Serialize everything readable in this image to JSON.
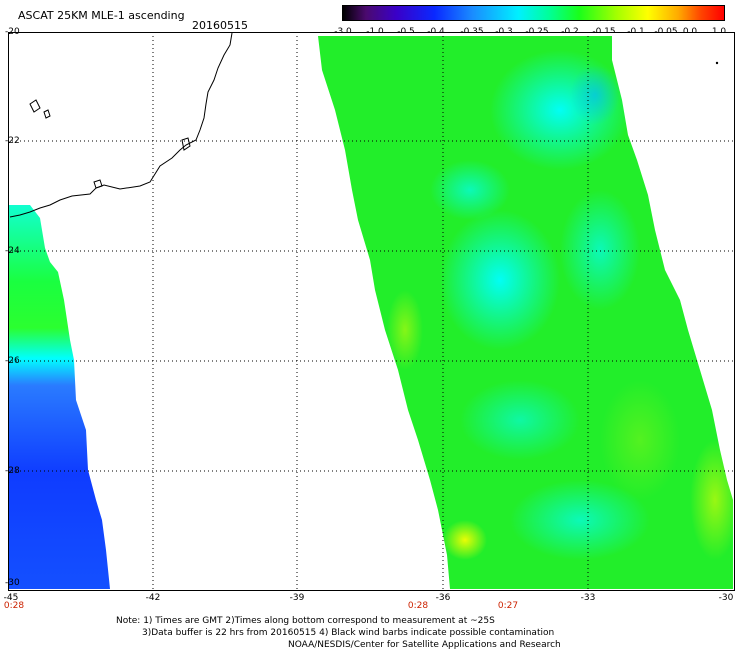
{
  "header": {
    "title": "ASCAT 25KM MLE-1 ascending",
    "date": "20160515"
  },
  "legend": {
    "ticks": [
      "-3.0",
      "-1.0",
      "-0.5",
      "-0.4",
      "-0.35",
      "-0.3",
      "-0.25",
      "-0.2",
      "-0.15",
      "-0.1",
      "-0.05",
      "0.0",
      "1.0"
    ]
  },
  "map": {
    "latitude_labels": [
      "-20",
      "-22",
      "-24",
      "-26",
      "-28",
      "-30"
    ],
    "longitude_labels": [
      "-45",
      "-42",
      "-39",
      "-36",
      "-33",
      "-30"
    ],
    "time_labels": [
      "0:28",
      "0:28",
      "0:27"
    ]
  },
  "footer": {
    "line1": "Note: 1) Times are GMT 2)Times along bottom correspond to measurement at ~25S",
    "line2": "3)Data buffer is 22 hrs from 20160515 4) Black wind barbs indicate possible contamination",
    "line3": "NOAA/NESDIS/Center for Satellite Applications and Research"
  }
}
